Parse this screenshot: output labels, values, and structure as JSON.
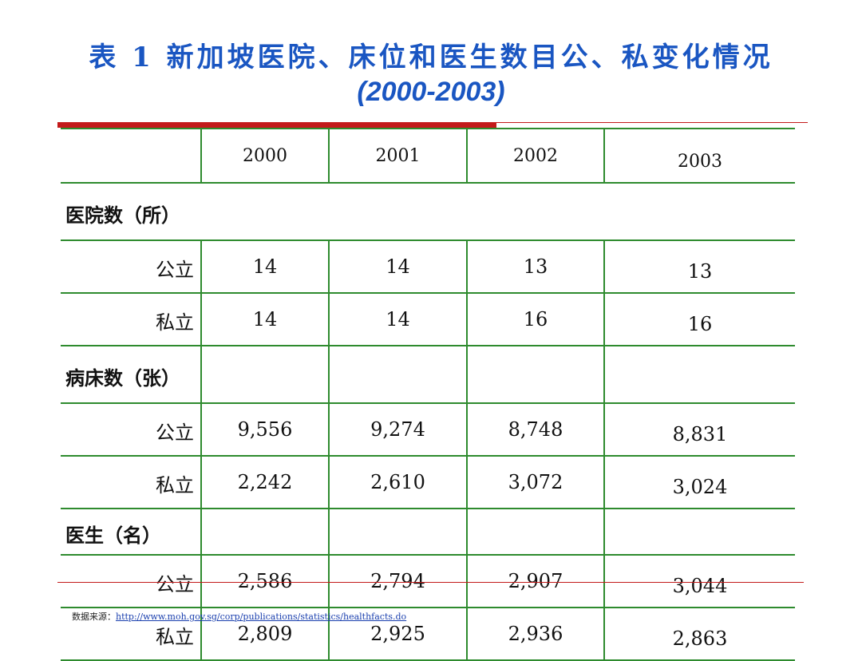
{
  "title": {
    "line1": "表 1  新加坡医院、床位和医生数目公、私变化情况",
    "line2": "(2000-2003)"
  },
  "table": {
    "years": [
      "2000",
      "2001",
      "2002",
      "2003"
    ],
    "groups": [
      {
        "label": "医院数（所）",
        "rows": [
          {
            "label": "公立",
            "values": [
              "14",
              "14",
              "13",
              "13"
            ]
          },
          {
            "label": "私立",
            "values": [
              "14",
              "14",
              "16",
              "16"
            ]
          }
        ]
      },
      {
        "label": "病床数（张）",
        "rows": [
          {
            "label": "公立",
            "values": [
              "9,556",
              "9,274",
              "8,748",
              "8,831"
            ]
          },
          {
            "label": "私立",
            "values": [
              "2,242",
              "2,610",
              "3,072",
              "3,024"
            ]
          }
        ]
      },
      {
        "label": "医生（名）",
        "rows": [
          {
            "label": "公立",
            "values": [
              "2,586",
              "2,794",
              "2,907",
              "3,044"
            ]
          },
          {
            "label": "私立",
            "values": [
              "2,809",
              "2,925",
              "2,936",
              "2,863"
            ]
          }
        ]
      }
    ]
  },
  "footer": {
    "prefix": "数据来源：",
    "link": "http://www.moh.gov.sg/corp/publications/statistics/healthfacts.do"
  }
}
